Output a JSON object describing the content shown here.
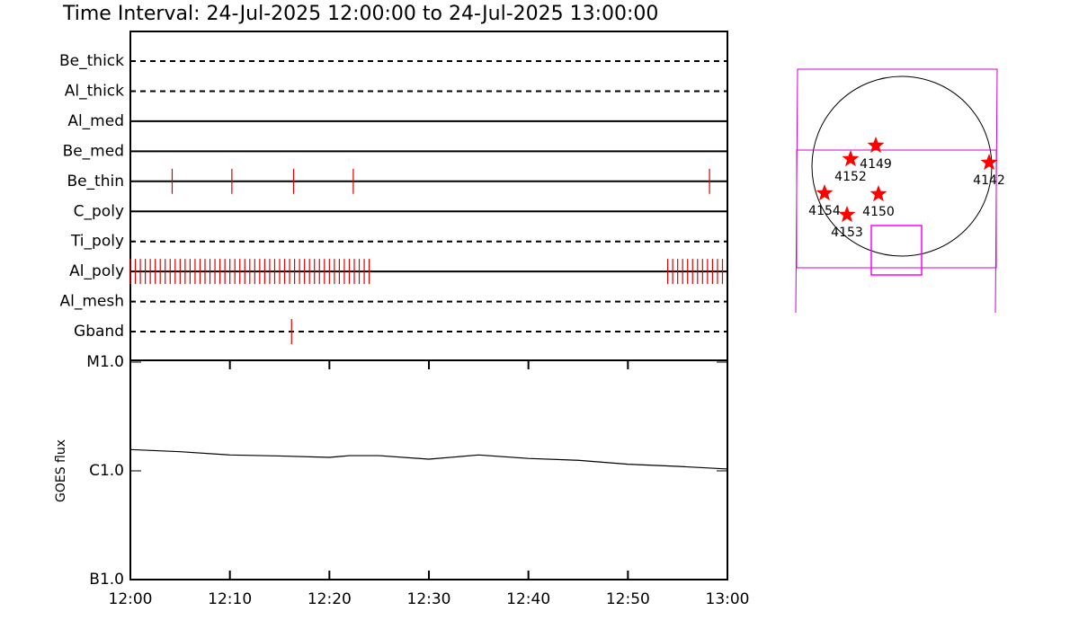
{
  "title": "Time Interval: 24-Jul-2025 12:00:00 to 24-Jul-2025 13:00:00",
  "chart_data": [
    {
      "type": "events",
      "xlim": [
        0,
        60
      ],
      "event_color": "#e00000",
      "series": [
        {
          "name": "Be_thick",
          "style": "dashed",
          "values": []
        },
        {
          "name": "Al_thick",
          "style": "dashed",
          "values": []
        },
        {
          "name": "Al_med",
          "style": "solid",
          "values": []
        },
        {
          "name": "Be_med",
          "style": "solid",
          "values": []
        },
        {
          "name": "Be_thin",
          "style": "solid",
          "values": [
            4.2,
            10.2,
            16.4,
            22.4,
            58.2
          ]
        },
        {
          "name": "C_poly",
          "style": "solid",
          "values": []
        },
        {
          "name": "Ti_poly",
          "style": "dashed",
          "values": []
        },
        {
          "name": "Al_poly",
          "style": "solid",
          "values": [
            0,
            0.5,
            1,
            1.5,
            2,
            2.5,
            3,
            3.5,
            4,
            4.5,
            5,
            5.5,
            6,
            6.5,
            7,
            7.5,
            8,
            8.5,
            9,
            9.5,
            10,
            10.5,
            11,
            11.5,
            12,
            12.5,
            13,
            13.5,
            14,
            14.5,
            15,
            15.5,
            16,
            16.5,
            17,
            17.5,
            18,
            18.5,
            19,
            19.5,
            20,
            20.5,
            21,
            21.5,
            22,
            22.5,
            23,
            23.5,
            24,
            54,
            54.5,
            55,
            55.5,
            56,
            56.5,
            57,
            57.5,
            58,
            58.5,
            59,
            59.5
          ]
        },
        {
          "name": "Al_mesh",
          "style": "dashed",
          "values": []
        },
        {
          "name": "Gband",
          "style": "dashed",
          "values": [
            16.2
          ]
        }
      ]
    },
    {
      "type": "line",
      "y_label": "GOES flux",
      "log_y": true,
      "color": "#000000",
      "x": [
        0,
        5,
        10,
        15,
        20,
        22,
        25,
        30,
        35,
        40,
        45,
        50,
        55,
        60
      ],
      "values": [
        1.57e-06,
        1.5e-06,
        1.4e-06,
        1.37e-06,
        1.33e-06,
        1.38e-06,
        1.38e-06,
        1.28e-06,
        1.4e-06,
        1.3e-06,
        1.25e-06,
        1.15e-06,
        1.1e-06,
        1.04e-06
      ],
      "xlim": [
        0,
        60
      ],
      "xticks": [
        {
          "value": 0,
          "label": "12:00"
        },
        {
          "value": 10,
          "label": "12:10"
        },
        {
          "value": 20,
          "label": "12:20"
        },
        {
          "value": 30,
          "label": "12:30"
        },
        {
          "value": 40,
          "label": "12:40"
        },
        {
          "value": 50,
          "label": "12:50"
        },
        {
          "value": 60,
          "label": "13:00"
        }
      ],
      "ylim": [
        1e-07,
        1e-05
      ],
      "yticks": [
        {
          "value": 1e-05,
          "label": "M1.0"
        },
        {
          "value": 1e-06,
          "label": "C1.0"
        },
        {
          "value": 1e-07,
          "label": "B1.0"
        }
      ]
    }
  ],
  "map": {
    "regions": [
      {
        "label": "4149"
      },
      {
        "label": "4152"
      },
      {
        "label": "4142"
      },
      {
        "label": "4154"
      },
      {
        "label": "4150"
      },
      {
        "label": "4153"
      }
    ]
  }
}
